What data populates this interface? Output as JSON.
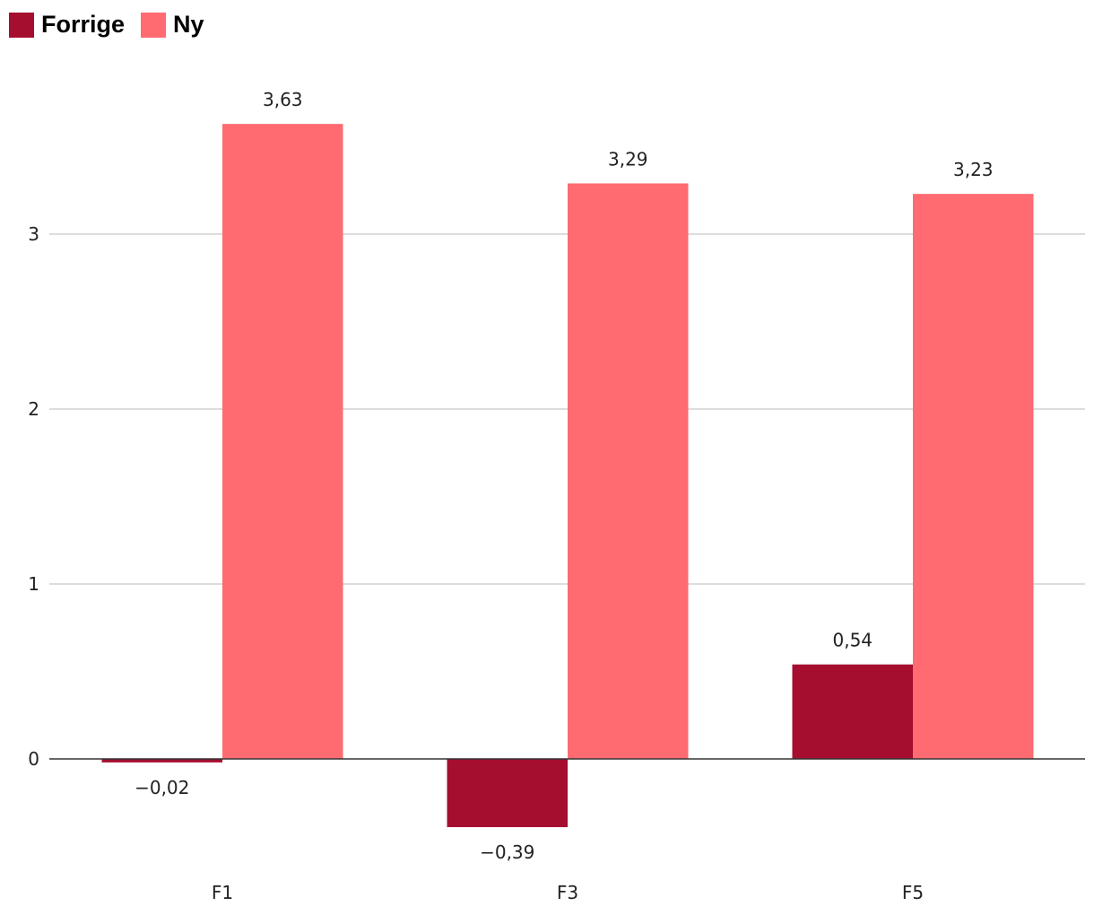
{
  "chart_data": {
    "type": "bar",
    "categories": [
      "F1",
      "F3",
      "F5"
    ],
    "series": [
      {
        "name": "Forrige",
        "color": "#a50e2f",
        "values": [
          -0.02,
          -0.39,
          0.54
        ],
        "labels": [
          "−0,02",
          "−0,39",
          "0,54"
        ]
      },
      {
        "name": "Ny",
        "color": "#ff6b71",
        "values": [
          3.63,
          3.29,
          3.23
        ],
        "labels": [
          "3,63",
          "3,29",
          "3,23"
        ]
      }
    ],
    "yticks": [
      0,
      1,
      2,
      3
    ],
    "ytick_labels": [
      "0",
      "1",
      "2",
      "3"
    ],
    "ylim": [
      -0.5,
      4
    ],
    "grid": true,
    "legend_position": "top-left",
    "gridline_color": "#c8c8c8",
    "zero_line_color": "#333333"
  }
}
